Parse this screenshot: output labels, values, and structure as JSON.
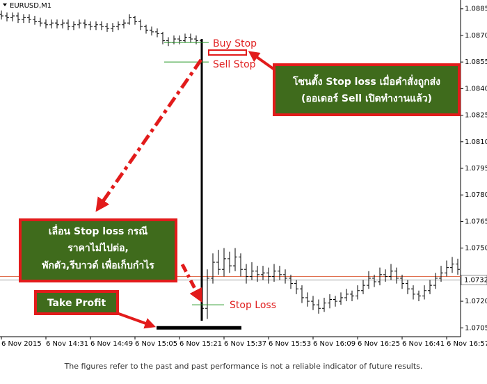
{
  "chart_data": {
    "type": "ohlc",
    "title": "EURUSD,M1",
    "categories": [
      "6 Nov 2015",
      null,
      null,
      null,
      null,
      null,
      null,
      null,
      "6 Nov 14:31",
      null,
      null,
      null,
      null,
      null,
      null,
      null,
      "6 Nov 14:49",
      null,
      null,
      null,
      null,
      null,
      null,
      null,
      "6 Nov 15:05",
      null,
      null,
      null,
      null,
      null,
      null,
      null,
      "6 Nov 15:21",
      null,
      null,
      null,
      null,
      null,
      null,
      null,
      "6 Nov 15:37",
      null,
      null,
      null,
      null,
      null,
      null,
      null,
      "6 Nov 15:53",
      null,
      null,
      null,
      null,
      null,
      null,
      null,
      "6 Nov 16:09",
      null,
      null,
      null,
      null,
      null,
      null,
      null,
      "6 Nov 16:25",
      null,
      null,
      null,
      null,
      null,
      null,
      null,
      "6 Nov 16:41",
      null,
      null,
      null,
      null,
      null,
      null,
      null,
      "6 Nov 16:57",
      null,
      null
    ],
    "open": [
      1.0882,
      1.0881,
      1.088,
      1.0881,
      1.0879,
      1.088,
      1.0879,
      1.0878,
      1.0877,
      1.0876,
      1.0877,
      1.0876,
      1.0877,
      1.0875,
      1.0876,
      1.0877,
      1.0876,
      1.0875,
      1.0876,
      1.0875,
      1.0874,
      1.0875,
      1.0876,
      1.0877,
      1.088,
      1.0878,
      1.0875,
      1.0873,
      1.0872,
      1.0871,
      1.0867,
      1.0866,
      1.0868,
      1.0867,
      1.0869,
      1.0868,
      1.0867,
      1.0716,
      1.0733,
      1.0742,
      1.0738,
      1.0744,
      1.074,
      1.0745,
      1.0738,
      1.0734,
      1.0737,
      1.0735,
      1.0736,
      1.0734,
      1.0737,
      1.0735,
      1.0733,
      1.073,
      1.0727,
      1.0722,
      1.072,
      1.0718,
      1.0716,
      1.0719,
      1.0721,
      1.072,
      1.0722,
      1.0724,
      1.0723,
      1.0726,
      1.0729,
      1.0733,
      1.0731,
      1.0735,
      1.0734,
      1.0737,
      1.0733,
      1.073,
      1.0727,
      1.0724,
      1.0723,
      1.0726,
      1.0729,
      1.0733,
      1.0736,
      1.0739,
      1.0741
    ],
    "high": [
      1.0884,
      1.0883,
      1.0883,
      1.0883,
      1.0882,
      1.0882,
      1.0881,
      1.088,
      1.0879,
      1.0879,
      1.0879,
      1.0879,
      1.0879,
      1.0878,
      1.0879,
      1.0879,
      1.0878,
      1.0878,
      1.0878,
      1.0877,
      1.0877,
      1.0878,
      1.0879,
      1.0882,
      1.0881,
      1.0879,
      1.0876,
      1.0875,
      1.0874,
      1.0872,
      1.0869,
      1.087,
      1.087,
      1.0871,
      1.0871,
      1.087,
      1.0868,
      1.0738,
      1.0747,
      1.0749,
      1.075,
      1.0748,
      1.075,
      1.0747,
      1.0741,
      1.0742,
      1.074,
      1.074,
      1.0739,
      1.0741,
      1.074,
      1.0738,
      1.0735,
      1.0732,
      1.0729,
      1.0725,
      1.0723,
      1.0721,
      1.0722,
      1.0724,
      1.0723,
      1.0725,
      1.0727,
      1.0726,
      1.0729,
      1.0732,
      1.0737,
      1.0735,
      1.0739,
      1.0738,
      1.0741,
      1.0739,
      1.0735,
      1.0732,
      1.0729,
      1.0726,
      1.0729,
      1.0732,
      1.0736,
      1.074,
      1.0743,
      1.0745,
      1.0744
    ],
    "low": [
      1.0879,
      1.0878,
      1.0878,
      1.0877,
      1.0877,
      1.0877,
      1.0876,
      1.0875,
      1.0874,
      1.0874,
      1.0874,
      1.0874,
      1.0873,
      1.0873,
      1.0874,
      1.0874,
      1.0873,
      1.0873,
      1.0873,
      1.0872,
      1.0872,
      1.0873,
      1.0874,
      1.0876,
      1.0876,
      1.0873,
      1.0871,
      1.087,
      1.0869,
      1.0865,
      1.0864,
      1.0865,
      1.0865,
      1.0866,
      1.0866,
      1.0865,
      1.0709,
      1.071,
      1.073,
      1.0735,
      1.0734,
      1.0736,
      1.0737,
      1.0734,
      1.073,
      1.0732,
      1.0731,
      1.0732,
      1.073,
      1.0731,
      1.0732,
      1.073,
      1.0727,
      1.0724,
      1.0719,
      1.0717,
      1.0715,
      1.0713,
      1.0714,
      1.0716,
      1.0717,
      1.0718,
      1.072,
      1.072,
      1.0721,
      1.0724,
      1.0727,
      1.0728,
      1.0729,
      1.0731,
      1.0732,
      1.073,
      1.0727,
      1.0724,
      1.0721,
      1.072,
      1.0721,
      1.0724,
      1.0727,
      1.0731,
      1.0734,
      1.0736,
      1.0735
    ],
    "close": [
      1.0881,
      1.088,
      1.0881,
      1.0879,
      1.088,
      1.0879,
      1.0878,
      1.0877,
      1.0876,
      1.0877,
      1.0876,
      1.0877,
      1.0875,
      1.0876,
      1.0877,
      1.0876,
      1.0875,
      1.0876,
      1.0875,
      1.0874,
      1.0875,
      1.0876,
      1.0877,
      1.088,
      1.0878,
      1.0875,
      1.0873,
      1.0872,
      1.0871,
      1.0867,
      1.0866,
      1.0868,
      1.0867,
      1.0869,
      1.0868,
      1.0867,
      1.0716,
      1.0733,
      1.0742,
      1.0738,
      1.0744,
      1.074,
      1.0745,
      1.0738,
      1.0734,
      1.0737,
      1.0735,
      1.0736,
      1.0734,
      1.0737,
      1.0735,
      1.0733,
      1.073,
      1.0727,
      1.0722,
      1.072,
      1.0718,
      1.0716,
      1.0719,
      1.0721,
      1.072,
      1.0722,
      1.0724,
      1.0723,
      1.0726,
      1.0729,
      1.0733,
      1.0731,
      1.0735,
      1.0734,
      1.0737,
      1.0733,
      1.073,
      1.0727,
      1.0724,
      1.0723,
      1.0726,
      1.0729,
      1.0733,
      1.0736,
      1.0739,
      1.0741,
      1.0738
    ],
    "color": "#000000",
    "ylim": [
      1.07,
      1.089
    ],
    "yticks": [
      1.0885,
      {
        "value": 1.087,
        "label": "1.0870"
      },
      1.0855,
      {
        "value": 1.084,
        "label": "1.0840"
      },
      1.0825,
      {
        "value": 1.081,
        "label": "1.0810"
      },
      1.0795,
      {
        "value": 1.078,
        "label": "1.0780"
      },
      1.0765,
      {
        "value": 1.075,
        "label": "1.0750"
      },
      {
        "value": 1.072,
        "label": "1.0720"
      },
      1.0705
    ],
    "current_price": 1.0732,
    "levels": [
      {
        "label": "Buy Stop",
        "value": 1.0866
      },
      {
        "label": "Sell Stop",
        "value": 1.0855
      },
      {
        "label": "Stop Loss",
        "value": 1.0718
      },
      {
        "label": "Take Profit",
        "value": 1.0705
      }
    ],
    "notes": [
      [
        "โซนตั้ง Stop loss เมื่อคำสั่งถูกส่ง",
        "(ออเดอร์ Sell เปิดทำงานแล้ว)"
      ],
      [
        "เลื่อน Stop loss กรณี",
        "ราคาไม่ไปต่อ,",
        "พักตัว,รีบาวด์ เพื่อเก็บกำไร"
      ]
    ],
    "disclaimer": "The figures refer to the past and past performance is not a reliable indicator of future results."
  }
}
